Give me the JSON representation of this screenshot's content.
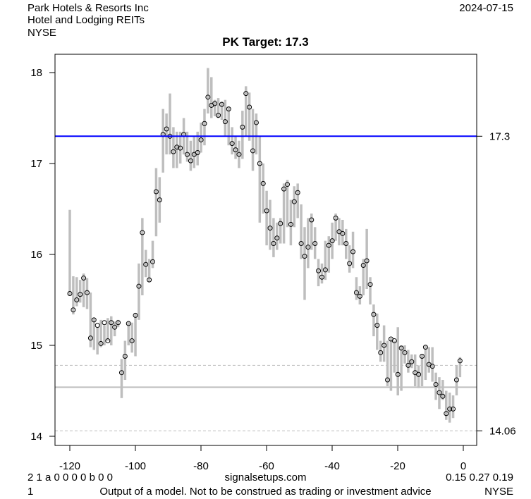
{
  "header": {
    "company": "Park Hotels & Resorts Inc",
    "industry": "Hotel and Lodging REITs",
    "exchange": "NYSE",
    "date": "2024-07-15"
  },
  "footer": {
    "codes": "2 1 a 0 0 0 0 b 0 0",
    "site": "signalsetups.com",
    "metrics": "0.15 0.27 0.19",
    "line_number": "1",
    "disclaimer": "Output of a model. Not to be construed as trading or investment advice",
    "exchange": "NYSE"
  },
  "chart_data": {
    "type": "bar",
    "subtype": "high-low-close",
    "title": "PK Target: 17.3",
    "xlabel": "",
    "ylabel": "",
    "xlim": [
      -120,
      0
    ],
    "ylim": [
      14,
      18
    ],
    "x_ticks": [
      "-120",
      "-100",
      "-80",
      "-60",
      "-40",
      "-20",
      "0"
    ],
    "x_tick_values": [
      -120,
      -100,
      -80,
      -60,
      -40,
      -20,
      0
    ],
    "y_ticks": [
      "14",
      "15",
      "16",
      "17",
      "18"
    ],
    "y_tick_values": [
      14,
      15,
      16,
      17,
      18
    ],
    "x_start": -120,
    "x_end": -1,
    "close": [
      15.57,
      15.39,
      15.5,
      15.56,
      15.74,
      15.58,
      15.08,
      15.28,
      15.22,
      15.02,
      15.25,
      15.05,
      15.25,
      15.2,
      15.25,
      14.7,
      14.88,
      15.24,
      15.05,
      15.33,
      15.65,
      16.24,
      15.89,
      15.72,
      15.92,
      16.69,
      16.6,
      17.32,
      17.38,
      17.3,
      17.13,
      17.18,
      17.17,
      17.32,
      17.1,
      17.03,
      17.1,
      17.12,
      17.26,
      17.44,
      17.73,
      17.64,
      17.66,
      17.53,
      17.65,
      17.46,
      17.6,
      17.22,
      17.15,
      17.1,
      17.4,
      17.77,
      17.62,
      17.14,
      17.45,
      17.0,
      16.78,
      16.48,
      16.29,
      16.12,
      16.18,
      16.34,
      16.72,
      16.77,
      16.33,
      16.58,
      16.68,
      16.12,
      15.98,
      16.08,
      16.38,
      16.12,
      15.82,
      15.75,
      15.83,
      16.1,
      16.15,
      16.4,
      16.25,
      16.23,
      16.12,
      15.9,
      16.03,
      15.58,
      15.54,
      15.88,
      15.93,
      15.67,
      15.34,
      15.22,
      14.92,
      15.0,
      14.62,
      15.07,
      15.05,
      14.68,
      14.97,
      14.92,
      14.78,
      14.82,
      14.7,
      14.68,
      14.88,
      14.98,
      14.79,
      14.77,
      14.57,
      14.48,
      14.44,
      14.25,
      14.3,
      14.3,
      14.62,
      14.83
    ],
    "high": [
      16.49,
      15.76,
      15.75,
      15.72,
      15.79,
      15.74,
      15.58,
      15.3,
      15.2,
      15.28,
      15.22,
      15.3,
      15.32,
      15.26,
      15.28,
      14.85,
      15.05,
      15.26,
      15.25,
      15.35,
      15.9,
      16.4,
      16.05,
      15.95,
      16.15,
      16.95,
      16.85,
      17.6,
      17.55,
      17.77,
      17.4,
      17.35,
      17.35,
      17.5,
      17.35,
      17.25,
      17.3,
      17.35,
      17.45,
      17.6,
      18.05,
      17.95,
      17.7,
      17.72,
      17.68,
      17.7,
      17.62,
      17.4,
      17.3,
      17.25,
      17.58,
      17.85,
      17.78,
      17.6,
      17.55,
      17.3,
      17.0,
      16.7,
      16.6,
      16.4,
      16.35,
      16.4,
      16.78,
      16.82,
      16.6,
      16.75,
      16.78,
      16.55,
      16.3,
      16.4,
      16.45,
      16.3,
      15.95,
      15.9,
      16.15,
      16.2,
      16.35,
      16.45,
      16.4,
      16.38,
      16.28,
      16.1,
      16.25,
      15.75,
      15.65,
      15.95,
      16.28,
      15.75,
      15.45,
      15.35,
      15.05,
      15.22,
      15.05,
      15.08,
      15.05,
      15.2,
      15.0,
      15.0,
      14.95,
      14.9,
      14.9,
      14.78,
      14.9,
      15.0,
      14.98,
      14.98,
      14.7,
      14.65,
      14.62,
      14.5,
      14.48,
      14.45,
      14.78,
      14.87
    ],
    "low": [
      15.55,
      15.34,
      15.43,
      15.47,
      15.42,
      15.4,
      14.98,
      14.95,
      14.9,
      14.98,
      15.0,
      15.05,
      15.0,
      15.1,
      15.2,
      14.42,
      14.62,
      15.0,
      14.92,
      14.88,
      15.28,
      15.55,
      15.75,
      15.7,
      15.85,
      16.2,
      16.35,
      16.9,
      17.1,
      17.1,
      16.95,
      16.95,
      17.0,
      17.1,
      17.02,
      16.92,
      16.95,
      16.98,
      17.12,
      17.2,
      17.55,
      17.5,
      17.52,
      17.5,
      17.48,
      17.3,
      17.2,
      17.1,
      17.05,
      16.95,
      17.05,
      17.3,
      17.25,
      16.92,
      17.1,
      16.35,
      16.45,
      16.1,
      16.05,
      15.97,
      16.05,
      16.12,
      16.12,
      16.3,
      16.1,
      16.3,
      16.4,
      15.95,
      15.5,
      15.85,
      16.05,
      15.95,
      15.65,
      15.68,
      15.72,
      15.8,
      15.95,
      16.15,
      16.1,
      16.1,
      15.95,
      15.8,
      15.85,
      15.5,
      15.45,
      15.55,
      15.62,
      15.45,
      15.1,
      14.95,
      14.82,
      14.82,
      14.55,
      14.5,
      14.7,
      14.45,
      14.5,
      14.8,
      14.7,
      14.75,
      14.55,
      14.53,
      14.55,
      14.62,
      14.7,
      14.6,
      14.4,
      14.3,
      14.4,
      14.18,
      14.15,
      14.2,
      14.45,
      14.65
    ],
    "target_line": {
      "value": 17.3,
      "label": "17.3",
      "color": "#0000ff"
    },
    "support_line": {
      "value": 14.54,
      "color": "#bebebe"
    },
    "dashed_upper": {
      "value": 14.78,
      "color": "#bebebe"
    },
    "dashed_lower": {
      "value": 14.06,
      "label": "14.06",
      "color": "#bebebe"
    },
    "bar_color": "#bebebe",
    "grid": false
  }
}
